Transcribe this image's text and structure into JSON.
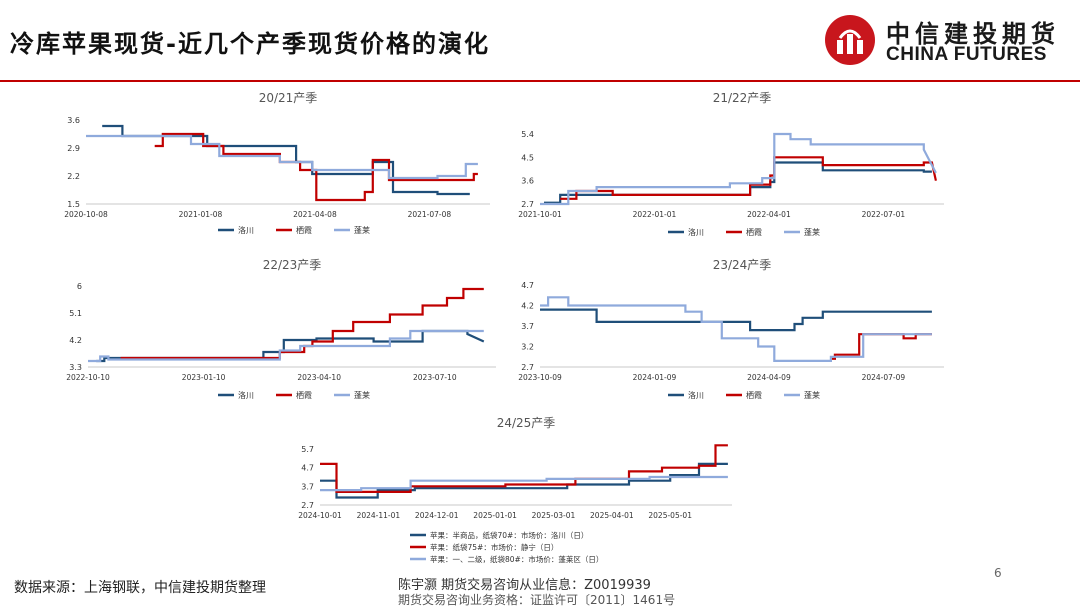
{
  "header": {
    "title": "冷库苹果现货-近几个产季现货价格的演化"
  },
  "logo": {
    "name": "中信建投期货",
    "english": "CHINA FUTURES",
    "mark_color": "#c8161d"
  },
  "colors": {
    "series_1": "#1f4e79",
    "series_2": "#c00000",
    "series_3": "#8faadc"
  },
  "chart_data": [
    {
      "type": "line",
      "title": "20/21产季",
      "x_ticks": [
        "2020-10-08",
        "2021-01-08",
        "2021-04-08",
        "2021-07-08"
      ],
      "y_ticks": [
        "1.5",
        "2.2",
        "2.9",
        "3.6"
      ],
      "ylim": [
        1.5,
        3.6
      ],
      "grid": false,
      "legend": "bottom",
      "series": [
        {
          "name": "洛川",
          "points": [
            [
              0.04,
              3.45
            ],
            [
              0.09,
              3.45
            ],
            [
              0.09,
              3.2
            ],
            [
              0.3,
              3.2
            ],
            [
              0.3,
              2.95
            ],
            [
              0.52,
              2.95
            ],
            [
              0.52,
              2.55
            ],
            [
              0.56,
              2.55
            ],
            [
              0.56,
              2.25
            ],
            [
              0.71,
              2.25
            ],
            [
              0.71,
              2.55
            ],
            [
              0.76,
              2.55
            ],
            [
              0.76,
              1.8
            ],
            [
              0.87,
              1.8
            ],
            [
              0.87,
              1.75
            ],
            [
              0.95,
              1.75
            ]
          ]
        },
        {
          "name": "栖霞",
          "points": [
            [
              0.17,
              2.95
            ],
            [
              0.19,
              2.95
            ],
            [
              0.19,
              3.25
            ],
            [
              0.29,
              3.25
            ],
            [
              0.29,
              2.95
            ],
            [
              0.34,
              2.95
            ],
            [
              0.34,
              2.75
            ],
            [
              0.48,
              2.75
            ],
            [
              0.48,
              2.55
            ],
            [
              0.53,
              2.55
            ],
            [
              0.53,
              2.35
            ],
            [
              0.57,
              2.35
            ],
            [
              0.57,
              1.6
            ],
            [
              0.69,
              1.6
            ],
            [
              0.69,
              1.8
            ],
            [
              0.71,
              1.8
            ],
            [
              0.71,
              2.6
            ],
            [
              0.75,
              2.6
            ],
            [
              0.75,
              2.1
            ],
            [
              0.96,
              2.1
            ],
            [
              0.96,
              2.25
            ],
            [
              0.97,
              2.25
            ]
          ]
        },
        {
          "name": "蓬莱",
          "points": [
            [
              0.0,
              3.2
            ],
            [
              0.26,
              3.2
            ],
            [
              0.26,
              3.0
            ],
            [
              0.33,
              3.0
            ],
            [
              0.33,
              2.7
            ],
            [
              0.48,
              2.7
            ],
            [
              0.48,
              2.55
            ],
            [
              0.56,
              2.55
            ],
            [
              0.56,
              2.35
            ],
            [
              0.75,
              2.35
            ],
            [
              0.75,
              2.15
            ],
            [
              0.87,
              2.15
            ],
            [
              0.87,
              2.2
            ],
            [
              0.94,
              2.2
            ],
            [
              0.94,
              2.5
            ],
            [
              0.97,
              2.5
            ]
          ]
        }
      ]
    },
    {
      "type": "line",
      "title": "21/22产季",
      "x_ticks": [
        "2021-10-01",
        "2022-01-01",
        "2022-04-01",
        "2022-07-01"
      ],
      "y_ticks": [
        "2.7",
        "3.6",
        "4.5",
        "5.4"
      ],
      "ylim": [
        2.7,
        5.4
      ],
      "grid": false,
      "legend": "bottom",
      "series": [
        {
          "name": "洛川",
          "points": [
            [
              0.01,
              2.75
            ],
            [
              0.05,
              2.75
            ],
            [
              0.05,
              3.05
            ],
            [
              0.52,
              3.05
            ],
            [
              0.52,
              3.35
            ],
            [
              0.57,
              3.35
            ],
            [
              0.57,
              3.55
            ],
            [
              0.58,
              3.55
            ],
            [
              0.58,
              4.3
            ],
            [
              0.7,
              4.3
            ],
            [
              0.7,
              4.0
            ],
            [
              0.95,
              4.0
            ],
            [
              0.95,
              3.95
            ],
            [
              0.97,
              3.95
            ]
          ]
        },
        {
          "name": "栖霞",
          "points": [
            [
              0.05,
              2.9
            ],
            [
              0.09,
              2.9
            ],
            [
              0.09,
              3.2
            ],
            [
              0.18,
              3.2
            ],
            [
              0.18,
              3.05
            ],
            [
              0.52,
              3.05
            ],
            [
              0.52,
              3.45
            ],
            [
              0.57,
              3.45
            ],
            [
              0.57,
              3.8
            ],
            [
              0.58,
              3.8
            ],
            [
              0.58,
              4.5
            ],
            [
              0.7,
              4.5
            ],
            [
              0.7,
              4.2
            ],
            [
              0.95,
              4.2
            ],
            [
              0.95,
              4.3
            ],
            [
              0.97,
              4.3
            ],
            [
              0.98,
              3.6
            ]
          ]
        },
        {
          "name": "蓬莱",
          "points": [
            [
              0.0,
              2.7
            ],
            [
              0.07,
              2.7
            ],
            [
              0.07,
              3.2
            ],
            [
              0.14,
              3.2
            ],
            [
              0.14,
              3.35
            ],
            [
              0.47,
              3.35
            ],
            [
              0.47,
              3.5
            ],
            [
              0.55,
              3.5
            ],
            [
              0.55,
              3.7
            ],
            [
              0.58,
              3.7
            ],
            [
              0.58,
              5.4
            ],
            [
              0.62,
              5.4
            ],
            [
              0.62,
              5.2
            ],
            [
              0.67,
              5.2
            ],
            [
              0.67,
              5.0
            ],
            [
              0.95,
              5.0
            ],
            [
              0.95,
              4.8
            ],
            [
              0.98,
              3.9
            ]
          ]
        }
      ]
    },
    {
      "type": "line",
      "title": "22/23产季",
      "x_ticks": [
        "2022-10-10",
        "2023-01-10",
        "2023-04-10",
        "2023-07-10"
      ],
      "y_ticks": [
        "3.3",
        "4.2",
        "5.1",
        "6"
      ],
      "ylim": [
        3.3,
        6.0
      ],
      "grid": false,
      "legend": "bottom",
      "series": [
        {
          "name": "洛川",
          "points": [
            [
              0.02,
              3.5
            ],
            [
              0.04,
              3.5
            ],
            [
              0.04,
              3.6
            ],
            [
              0.43,
              3.6
            ],
            [
              0.43,
              3.8
            ],
            [
              0.48,
              3.8
            ],
            [
              0.48,
              4.2
            ],
            [
              0.56,
              4.2
            ],
            [
              0.56,
              4.25
            ],
            [
              0.7,
              4.25
            ],
            [
              0.7,
              4.15
            ],
            [
              0.82,
              4.15
            ],
            [
              0.82,
              4.5
            ],
            [
              0.93,
              4.5
            ],
            [
              0.93,
              4.4
            ],
            [
              0.97,
              4.15
            ]
          ]
        },
        {
          "name": "栖霞",
          "points": [
            [
              0.08,
              3.6
            ],
            [
              0.47,
              3.6
            ],
            [
              0.47,
              3.8
            ],
            [
              0.53,
              3.8
            ],
            [
              0.53,
              4.0
            ],
            [
              0.55,
              4.0
            ],
            [
              0.55,
              4.15
            ],
            [
              0.6,
              4.15
            ],
            [
              0.6,
              4.5
            ],
            [
              0.65,
              4.5
            ],
            [
              0.65,
              4.8
            ],
            [
              0.74,
              4.8
            ],
            [
              0.74,
              5.05
            ],
            [
              0.82,
              5.05
            ],
            [
              0.82,
              5.35
            ],
            [
              0.88,
              5.35
            ],
            [
              0.88,
              5.6
            ],
            [
              0.92,
              5.6
            ],
            [
              0.92,
              5.9
            ],
            [
              0.97,
              5.9
            ]
          ]
        },
        {
          "name": "蓬莱",
          "points": [
            [
              0.0,
              3.5
            ],
            [
              0.03,
              3.5
            ],
            [
              0.03,
              3.65
            ],
            [
              0.05,
              3.65
            ],
            [
              0.05,
              3.55
            ],
            [
              0.47,
              3.55
            ],
            [
              0.47,
              3.85
            ],
            [
              0.52,
              3.85
            ],
            [
              0.52,
              4.0
            ],
            [
              0.74,
              4.0
            ],
            [
              0.74,
              4.25
            ],
            [
              0.79,
              4.25
            ],
            [
              0.79,
              4.5
            ],
            [
              0.97,
              4.5
            ]
          ]
        }
      ]
    },
    {
      "type": "line",
      "title": "23/24产季",
      "x_ticks": [
        "2023-10-09",
        "2024-01-09",
        "2024-04-09",
        "2024-07-09"
      ],
      "y_ticks": [
        "2.7",
        "3.2",
        "3.7",
        "4.2",
        "4.7"
      ],
      "ylim": [
        2.7,
        4.7
      ],
      "grid": false,
      "legend": "bottom",
      "series": [
        {
          "name": "洛川",
          "points": [
            [
              0.0,
              4.1
            ],
            [
              0.14,
              4.1
            ],
            [
              0.14,
              3.8
            ],
            [
              0.52,
              3.8
            ],
            [
              0.52,
              3.6
            ],
            [
              0.63,
              3.6
            ],
            [
              0.63,
              3.75
            ],
            [
              0.65,
              3.75
            ],
            [
              0.65,
              3.9
            ],
            [
              0.7,
              3.9
            ],
            [
              0.7,
              4.05
            ],
            [
              0.97,
              4.05
            ]
          ]
        },
        {
          "name": "栖霞",
          "points": [
            [
              0.72,
              2.9
            ],
            [
              0.73,
              2.9
            ],
            [
              0.73,
              3.0
            ],
            [
              0.79,
              3.0
            ],
            [
              0.79,
              3.5
            ],
            [
              0.9,
              3.5
            ],
            [
              0.9,
              3.4
            ],
            [
              0.93,
              3.4
            ],
            [
              0.93,
              3.5
            ],
            [
              0.97,
              3.5
            ]
          ]
        },
        {
          "name": "蓬莱",
          "points": [
            [
              0.0,
              4.2
            ],
            [
              0.02,
              4.2
            ],
            [
              0.02,
              4.4
            ],
            [
              0.07,
              4.4
            ],
            [
              0.07,
              4.2
            ],
            [
              0.36,
              4.2
            ],
            [
              0.36,
              4.05
            ],
            [
              0.4,
              4.05
            ],
            [
              0.4,
              3.8
            ],
            [
              0.45,
              3.8
            ],
            [
              0.45,
              3.4
            ],
            [
              0.54,
              3.4
            ],
            [
              0.54,
              3.2
            ],
            [
              0.58,
              3.2
            ],
            [
              0.58,
              2.85
            ],
            [
              0.72,
              2.85
            ],
            [
              0.72,
              2.95
            ],
            [
              0.8,
              2.95
            ],
            [
              0.8,
              3.5
            ],
            [
              0.97,
              3.5
            ]
          ]
        }
      ]
    },
    {
      "type": "line",
      "title": "24/25产季",
      "x_ticks": [
        "2024-10-01",
        "2024-11-01",
        "2024-12-01",
        "2025-01-01",
        "2025-03-01",
        "2025-04-01",
        "2025-05-01"
      ],
      "y_ticks": [
        "2.7",
        "3.7",
        "4.7",
        "5.7"
      ],
      "ylim": [
        2.7,
        5.7
      ],
      "grid": false,
      "legend": "bottom",
      "series": [
        {
          "name": "苹果：半商品，纸袋70#：市场价：洛川（日）",
          "points": [
            [
              0.0,
              4.0
            ],
            [
              0.04,
              4.0
            ],
            [
              0.04,
              3.1
            ],
            [
              0.14,
              3.1
            ],
            [
              0.14,
              3.5
            ],
            [
              0.23,
              3.5
            ],
            [
              0.23,
              3.6
            ],
            [
              0.6,
              3.6
            ],
            [
              0.6,
              3.8
            ],
            [
              0.75,
              3.8
            ],
            [
              0.75,
              4.0
            ],
            [
              0.85,
              4.0
            ],
            [
              0.85,
              4.3
            ],
            [
              0.92,
              4.3
            ],
            [
              0.92,
              4.9
            ],
            [
              0.99,
              4.9
            ]
          ]
        },
        {
          "name": "苹果：纸袋75#：市场价：静宁（日）",
          "points": [
            [
              0.0,
              4.9
            ],
            [
              0.04,
              4.9
            ],
            [
              0.04,
              3.4
            ],
            [
              0.22,
              3.4
            ],
            [
              0.22,
              3.7
            ],
            [
              0.45,
              3.7
            ],
            [
              0.45,
              3.8
            ],
            [
              0.62,
              3.8
            ],
            [
              0.62,
              4.1
            ],
            [
              0.75,
              4.1
            ],
            [
              0.75,
              4.5
            ],
            [
              0.83,
              4.5
            ],
            [
              0.83,
              4.7
            ],
            [
              0.92,
              4.7
            ],
            [
              0.92,
              4.8
            ],
            [
              0.96,
              4.8
            ],
            [
              0.96,
              5.9
            ],
            [
              0.99,
              5.9
            ]
          ]
        },
        {
          "name": "苹果：一、二级，纸袋80#：市场价：蓬莱区（日）",
          "points": [
            [
              0.0,
              3.5
            ],
            [
              0.1,
              3.5
            ],
            [
              0.1,
              3.6
            ],
            [
              0.22,
              3.6
            ],
            [
              0.22,
              4.0
            ],
            [
              0.55,
              4.0
            ],
            [
              0.55,
              4.1
            ],
            [
              0.8,
              4.1
            ],
            [
              0.8,
              4.2
            ],
            [
              0.99,
              4.2
            ]
          ]
        }
      ]
    }
  ],
  "footer": {
    "source": "数据来源：上海钢联，中信建投期货整理",
    "analyst": "陈宇灏 期货交易咨询从业信息：Z0019939",
    "license": "期货交易咨询业务资格：证监许可〔2011〕1461号",
    "page_number": "6"
  }
}
